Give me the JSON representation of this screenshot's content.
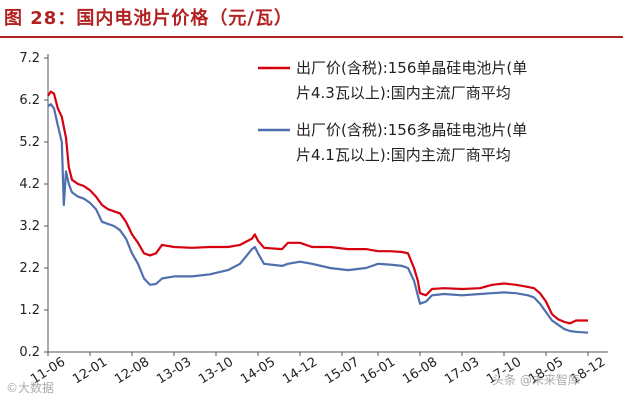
{
  "figure_title": "图 28：国内电池片价格（元/瓦）",
  "watermarks": [
    "©大数据",
    "头条 @未来智库"
  ],
  "colors": {
    "title": "#b22222",
    "mono": "#d7000f",
    "poly": "#4f6fae",
    "axis": "#555555"
  },
  "chart_data": {
    "type": "line",
    "title": "",
    "xlabel": "",
    "ylabel": "",
    "ylim": [
      0.2,
      7.2
    ],
    "yticks": [
      "0.2",
      "1.2",
      "2.2",
      "3.2",
      "4.2",
      "5.2",
      "6.2",
      "7.2"
    ],
    "xlim": [
      "2011-06",
      "2018-12"
    ],
    "xticks": [
      "11-06",
      "12-01",
      "12-08",
      "13-03",
      "13-10",
      "14-05",
      "14-12",
      "15-07",
      "16-01",
      "16-08",
      "17-03",
      "17-10",
      "18-05",
      "18-12"
    ],
    "grid": false,
    "legend_position": "top-right",
    "series": [
      {
        "name": "出厂价(含税):156单晶硅电池片(单片4.3瓦以上):国内主流厂商平均",
        "color": "#d7000f",
        "points": [
          [
            "2011-06",
            6.3
          ],
          [
            "2011-06-15",
            6.4
          ],
          [
            "2011-07",
            6.35
          ],
          [
            "2011-07-20",
            6.0
          ],
          [
            "2011-08-10",
            5.8
          ],
          [
            "2011-09",
            5.3
          ],
          [
            "2011-09-15",
            4.6
          ],
          [
            "2011-10",
            4.3
          ],
          [
            "2011-11",
            4.2
          ],
          [
            "2011-12",
            4.15
          ],
          [
            "2012-01",
            4.05
          ],
          [
            "2012-02",
            3.9
          ],
          [
            "2012-03",
            3.7
          ],
          [
            "2012-04",
            3.6
          ],
          [
            "2012-05",
            3.55
          ],
          [
            "2012-06",
            3.5
          ],
          [
            "2012-07",
            3.3
          ],
          [
            "2012-08",
            3.0
          ],
          [
            "2012-09",
            2.8
          ],
          [
            "2012-10",
            2.55
          ],
          [
            "2012-11",
            2.5
          ],
          [
            "2012-12",
            2.55
          ],
          [
            "2013-01",
            2.75
          ],
          [
            "2013-03",
            2.7
          ],
          [
            "2013-06",
            2.68
          ],
          [
            "2013-09",
            2.7
          ],
          [
            "2013-12",
            2.7
          ],
          [
            "2014-02",
            2.75
          ],
          [
            "2014-04",
            2.9
          ],
          [
            "2014-04-15",
            3.0
          ],
          [
            "2014-05",
            2.85
          ],
          [
            "2014-06",
            2.68
          ],
          [
            "2014-09",
            2.65
          ],
          [
            "2014-10",
            2.8
          ],
          [
            "2014-12",
            2.8
          ],
          [
            "2015-02",
            2.7
          ],
          [
            "2015-05",
            2.7
          ],
          [
            "2015-08",
            2.65
          ],
          [
            "2015-11",
            2.65
          ],
          [
            "2016-01",
            2.6
          ],
          [
            "2016-03",
            2.6
          ],
          [
            "2016-05",
            2.58
          ],
          [
            "2016-06",
            2.55
          ],
          [
            "2016-07",
            2.2
          ],
          [
            "2016-07-20",
            1.9
          ],
          [
            "2016-08",
            1.6
          ],
          [
            "2016-09",
            1.55
          ],
          [
            "2016-10",
            1.7
          ],
          [
            "2016-12",
            1.72
          ],
          [
            "2017-03",
            1.7
          ],
          [
            "2017-06",
            1.72
          ],
          [
            "2017-08",
            1.8
          ],
          [
            "2017-10",
            1.83
          ],
          [
            "2017-12",
            1.8
          ],
          [
            "2018-02",
            1.75
          ],
          [
            "2018-03",
            1.72
          ],
          [
            "2018-04",
            1.6
          ],
          [
            "2018-05",
            1.4
          ],
          [
            "2018-06",
            1.1
          ],
          [
            "2018-07",
            0.98
          ],
          [
            "2018-08",
            0.92
          ],
          [
            "2018-09",
            0.88
          ],
          [
            "2018-10",
            0.95
          ],
          [
            "2018-12",
            0.95
          ]
        ]
      },
      {
        "name": "出厂价(含税):156多晶硅电池片(单片4.1瓦以上):国内主流厂商平均",
        "color": "#4f6fae",
        "points": [
          [
            "2011-06",
            6.05
          ],
          [
            "2011-06-15",
            6.1
          ],
          [
            "2011-07",
            6.0
          ],
          [
            "2011-07-20",
            5.6
          ],
          [
            "2011-08-10",
            5.2
          ],
          [
            "2011-08-20",
            3.7
          ],
          [
            "2011-09",
            4.5
          ],
          [
            "2011-09-15",
            4.2
          ],
          [
            "2011-10",
            4.0
          ],
          [
            "2011-11",
            3.9
          ],
          [
            "2011-12",
            3.85
          ],
          [
            "2012-01",
            3.75
          ],
          [
            "2012-02",
            3.6
          ],
          [
            "2012-03",
            3.3
          ],
          [
            "2012-04",
            3.25
          ],
          [
            "2012-05",
            3.2
          ],
          [
            "2012-06",
            3.1
          ],
          [
            "2012-07",
            2.9
          ],
          [
            "2012-08",
            2.55
          ],
          [
            "2012-09",
            2.3
          ],
          [
            "2012-10",
            1.95
          ],
          [
            "2012-11",
            1.8
          ],
          [
            "2012-12",
            1.82
          ],
          [
            "2013-01",
            1.95
          ],
          [
            "2013-03",
            2.0
          ],
          [
            "2013-06",
            2.0
          ],
          [
            "2013-09",
            2.05
          ],
          [
            "2013-12",
            2.15
          ],
          [
            "2014-02",
            2.3
          ],
          [
            "2014-04",
            2.65
          ],
          [
            "2014-04-15",
            2.7
          ],
          [
            "2014-05",
            2.55
          ],
          [
            "2014-06",
            2.3
          ],
          [
            "2014-09",
            2.25
          ],
          [
            "2014-10",
            2.3
          ],
          [
            "2014-12",
            2.35
          ],
          [
            "2015-02",
            2.3
          ],
          [
            "2015-05",
            2.2
          ],
          [
            "2015-08",
            2.15
          ],
          [
            "2015-11",
            2.2
          ],
          [
            "2016-01",
            2.3
          ],
          [
            "2016-03",
            2.28
          ],
          [
            "2016-05",
            2.25
          ],
          [
            "2016-06",
            2.2
          ],
          [
            "2016-07",
            1.9
          ],
          [
            "2016-07-20",
            1.55
          ],
          [
            "2016-08",
            1.35
          ],
          [
            "2016-09",
            1.4
          ],
          [
            "2016-10",
            1.55
          ],
          [
            "2016-12",
            1.58
          ],
          [
            "2017-03",
            1.55
          ],
          [
            "2017-06",
            1.58
          ],
          [
            "2017-08",
            1.6
          ],
          [
            "2017-10",
            1.62
          ],
          [
            "2017-12",
            1.6
          ],
          [
            "2018-02",
            1.55
          ],
          [
            "2018-03",
            1.5
          ],
          [
            "2018-04",
            1.35
          ],
          [
            "2018-05",
            1.15
          ],
          [
            "2018-06",
            0.95
          ],
          [
            "2018-07",
            0.85
          ],
          [
            "2018-08",
            0.75
          ],
          [
            "2018-09",
            0.7
          ],
          [
            "2018-10",
            0.68
          ],
          [
            "2018-12",
            0.66
          ]
        ]
      }
    ]
  }
}
